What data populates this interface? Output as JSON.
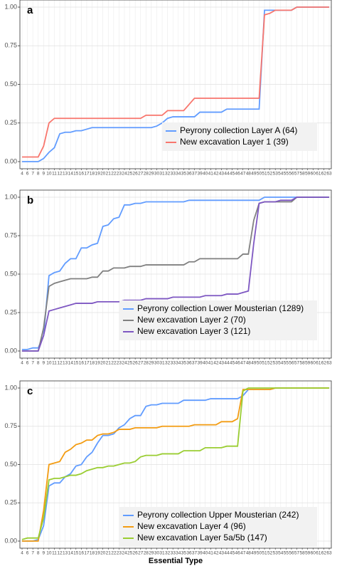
{
  "chart_data": [
    {
      "type": "line",
      "label": "a",
      "categories": [
        "4",
        "6",
        "7",
        "8",
        "9",
        "10",
        "11",
        "12",
        "13",
        "14",
        "15",
        "16",
        "17",
        "18",
        "19",
        "20",
        "21",
        "22",
        "23",
        "24",
        "25",
        "26",
        "27",
        "28",
        "29",
        "30",
        "31",
        "32",
        "33",
        "34",
        "35",
        "36",
        "37",
        "39",
        "40",
        "41",
        "42",
        "43",
        "44",
        "45",
        "46",
        "47",
        "48",
        "49",
        "50",
        "51",
        "52",
        "53",
        "54",
        "55",
        "56",
        "57",
        "58",
        "59",
        "60",
        "61",
        "62",
        "63"
      ],
      "ylim": [
        0,
        1
      ],
      "yticks": [
        {
          "value": 0,
          "label": "0.00"
        },
        {
          "value": 0.25,
          "label": "0.25"
        },
        {
          "value": 0.5,
          "label": "0.50"
        },
        {
          "value": 0.75,
          "label": "0.75"
        },
        {
          "value": 1,
          "label": "1.00"
        }
      ],
      "grid": true,
      "legend_position": "bottom-right",
      "series": [
        {
          "name": "Peyrony collection Layer A (64)",
          "color": "#619cff",
          "values": [
            0,
            0,
            0,
            0,
            0.02,
            0.06,
            0.09,
            0.18,
            0.19,
            0.19,
            0.2,
            0.2,
            0.21,
            0.22,
            0.22,
            0.22,
            0.22,
            0.22,
            0.22,
            0.22,
            0.22,
            0.22,
            0.22,
            0.22,
            0.22,
            0.23,
            0.25,
            0.28,
            0.29,
            0.29,
            0.29,
            0.29,
            0.29,
            0.32,
            0.32,
            0.32,
            0.32,
            0.32,
            0.34,
            0.34,
            0.34,
            0.34,
            0.34,
            0.34,
            0.34,
            0.98,
            0.98,
            0.98,
            0.98,
            0.98,
            0.98,
            1,
            1,
            1,
            1,
            1,
            1,
            1
          ]
        },
        {
          "name": "New excavation Layer 1 (39)",
          "color": "#f8766d",
          "values": [
            0.03,
            0.03,
            0.03,
            0.03,
            0.1,
            0.25,
            0.28,
            0.28,
            0.28,
            0.28,
            0.28,
            0.28,
            0.28,
            0.28,
            0.28,
            0.28,
            0.28,
            0.28,
            0.28,
            0.28,
            0.28,
            0.28,
            0.28,
            0.3,
            0.3,
            0.3,
            0.3,
            0.33,
            0.33,
            0.33,
            0.33,
            0.37,
            0.41,
            0.41,
            0.41,
            0.41,
            0.41,
            0.41,
            0.41,
            0.41,
            0.41,
            0.41,
            0.41,
            0.41,
            0.41,
            0.95,
            0.96,
            0.98,
            0.98,
            0.98,
            0.98,
            1,
            1,
            1,
            1,
            1,
            1,
            1
          ]
        }
      ]
    },
    {
      "type": "line",
      "label": "b",
      "categories": [
        "4",
        "6",
        "7",
        "8",
        "9",
        "10",
        "11",
        "12",
        "13",
        "14",
        "15",
        "16",
        "17",
        "18",
        "19",
        "20",
        "21",
        "22",
        "23",
        "24",
        "25",
        "26",
        "27",
        "28",
        "29",
        "30",
        "31",
        "32",
        "33",
        "34",
        "35",
        "36",
        "37",
        "39",
        "40",
        "41",
        "42",
        "43",
        "44",
        "45",
        "46",
        "47",
        "48",
        "49",
        "50",
        "51",
        "52",
        "53",
        "54",
        "55",
        "56",
        "57",
        "58",
        "59",
        "60",
        "61",
        "62",
        "63"
      ],
      "ylim": [
        0,
        1
      ],
      "yticks": [
        {
          "value": 0,
          "label": "0.00"
        },
        {
          "value": 0.25,
          "label": "0.25"
        },
        {
          "value": 0.5,
          "label": "0.50"
        },
        {
          "value": 0.75,
          "label": "0.75"
        },
        {
          "value": 1,
          "label": "1.00"
        }
      ],
      "grid": true,
      "legend_position": "bottom-right",
      "series": [
        {
          "name": "Peyrony collection Lower Mousterian (1289)",
          "color": "#619cff",
          "values": [
            0.01,
            0.01,
            0.02,
            0.02,
            0.1,
            0.49,
            0.51,
            0.52,
            0.57,
            0.6,
            0.6,
            0.67,
            0.67,
            0.69,
            0.7,
            0.81,
            0.82,
            0.86,
            0.87,
            0.95,
            0.95,
            0.96,
            0.96,
            0.97,
            0.97,
            0.97,
            0.97,
            0.97,
            0.97,
            0.97,
            0.97,
            0.98,
            0.98,
            0.98,
            0.98,
            0.98,
            0.98,
            0.98,
            0.98,
            0.98,
            0.98,
            0.98,
            0.98,
            0.98,
            0.98,
            1,
            1,
            1,
            1,
            1,
            1,
            1,
            1,
            1,
            1,
            1,
            1,
            1
          ]
        },
        {
          "name": "New excavation Layer 2 (70)",
          "color": "#808080",
          "values": [
            0,
            0,
            0,
            0,
            0.15,
            0.42,
            0.44,
            0.45,
            0.46,
            0.47,
            0.47,
            0.47,
            0.47,
            0.48,
            0.48,
            0.52,
            0.52,
            0.54,
            0.54,
            0.54,
            0.55,
            0.55,
            0.55,
            0.56,
            0.56,
            0.56,
            0.56,
            0.56,
            0.56,
            0.56,
            0.56,
            0.58,
            0.58,
            0.6,
            0.6,
            0.6,
            0.6,
            0.6,
            0.6,
            0.6,
            0.6,
            0.63,
            0.63,
            0.85,
            0.96,
            0.97,
            0.97,
            0.97,
            0.97,
            0.97,
            0.97,
            1,
            1,
            1,
            1,
            1,
            1,
            1
          ]
        },
        {
          "name": "New excavation Layer 3 (121)",
          "color": "#7e57c2",
          "values": [
            0,
            0,
            0,
            0,
            0.1,
            0.26,
            0.27,
            0.28,
            0.29,
            0.3,
            0.31,
            0.31,
            0.31,
            0.31,
            0.32,
            0.32,
            0.32,
            0.32,
            0.32,
            0.33,
            0.33,
            0.33,
            0.33,
            0.34,
            0.34,
            0.34,
            0.34,
            0.34,
            0.35,
            0.35,
            0.35,
            0.35,
            0.35,
            0.35,
            0.36,
            0.36,
            0.36,
            0.36,
            0.37,
            0.37,
            0.37,
            0.38,
            0.39,
            0.7,
            0.96,
            0.97,
            0.97,
            0.97,
            0.98,
            0.98,
            0.98,
            1,
            1,
            1,
            1,
            1,
            1,
            1
          ]
        }
      ]
    },
    {
      "type": "line",
      "label": "c",
      "x_label": "Essential Type",
      "categories": [
        "4",
        "6",
        "7",
        "8",
        "9",
        "10",
        "11",
        "12",
        "13",
        "14",
        "15",
        "16",
        "17",
        "18",
        "19",
        "20",
        "21",
        "22",
        "23",
        "24",
        "25",
        "26",
        "27",
        "28",
        "29",
        "30",
        "31",
        "32",
        "33",
        "34",
        "35",
        "36",
        "37",
        "39",
        "40",
        "41",
        "42",
        "43",
        "44",
        "45",
        "46",
        "47",
        "48",
        "49",
        "50",
        "51",
        "52",
        "53",
        "54",
        "55",
        "56",
        "57",
        "58",
        "59",
        "60",
        "61",
        "62",
        "63"
      ],
      "ylim": [
        0,
        1
      ],
      "yticks": [
        {
          "value": 0,
          "label": "0.00"
        },
        {
          "value": 0.25,
          "label": "0.25"
        },
        {
          "value": 0.5,
          "label": "0.50"
        },
        {
          "value": 0.75,
          "label": "0.75"
        },
        {
          "value": 1,
          "label": "1.00"
        }
      ],
      "grid": true,
      "legend_position": "bottom-right",
      "series": [
        {
          "name": "Peyrony collection Upper Mousterian (242)",
          "color": "#619cff",
          "values": [
            0,
            0,
            0,
            0.01,
            0.1,
            0.36,
            0.38,
            0.38,
            0.42,
            0.44,
            0.49,
            0.5,
            0.55,
            0.58,
            0.64,
            0.69,
            0.69,
            0.7,
            0.74,
            0.76,
            0.8,
            0.82,
            0.82,
            0.88,
            0.89,
            0.89,
            0.9,
            0.9,
            0.9,
            0.9,
            0.92,
            0.92,
            0.92,
            0.92,
            0.92,
            0.93,
            0.93,
            0.93,
            0.93,
            0.93,
            0.93,
            0.95,
            0.99,
            0.99,
            0.99,
            0.99,
            0.99,
            1,
            1,
            1,
            1,
            1,
            1,
            1,
            1,
            1,
            1,
            1
          ]
        },
        {
          "name": "New excavation Layer 4 (96)",
          "color": "#f39c12",
          "values": [
            0,
            0,
            0,
            0,
            0.2,
            0.5,
            0.51,
            0.52,
            0.58,
            0.6,
            0.63,
            0.64,
            0.66,
            0.66,
            0.69,
            0.7,
            0.7,
            0.71,
            0.73,
            0.73,
            0.73,
            0.74,
            0.74,
            0.74,
            0.74,
            0.74,
            0.75,
            0.75,
            0.75,
            0.75,
            0.75,
            0.75,
            0.76,
            0.76,
            0.76,
            0.76,
            0.76,
            0.78,
            0.78,
            0.78,
            0.8,
            0.99,
            0.99,
            0.99,
            0.99,
            0.99,
            0.99,
            1,
            1,
            1,
            1,
            1,
            1,
            1,
            1,
            1,
            1,
            1
          ]
        },
        {
          "name": "New excavation Layer 5a/5b (147)",
          "color": "#9acd32",
          "values": [
            0.01,
            0.02,
            0.02,
            0.02,
            0.15,
            0.4,
            0.41,
            0.41,
            0.42,
            0.43,
            0.43,
            0.44,
            0.46,
            0.47,
            0.48,
            0.48,
            0.49,
            0.49,
            0.5,
            0.51,
            0.51,
            0.52,
            0.55,
            0.56,
            0.56,
            0.56,
            0.57,
            0.57,
            0.57,
            0.57,
            0.59,
            0.59,
            0.59,
            0.59,
            0.61,
            0.61,
            0.61,
            0.61,
            0.62,
            0.62,
            0.62,
            0.98,
            1,
            1,
            1,
            1,
            1,
            1,
            1,
            1,
            1,
            1,
            1,
            1,
            1,
            1,
            1,
            1
          ]
        }
      ]
    }
  ]
}
